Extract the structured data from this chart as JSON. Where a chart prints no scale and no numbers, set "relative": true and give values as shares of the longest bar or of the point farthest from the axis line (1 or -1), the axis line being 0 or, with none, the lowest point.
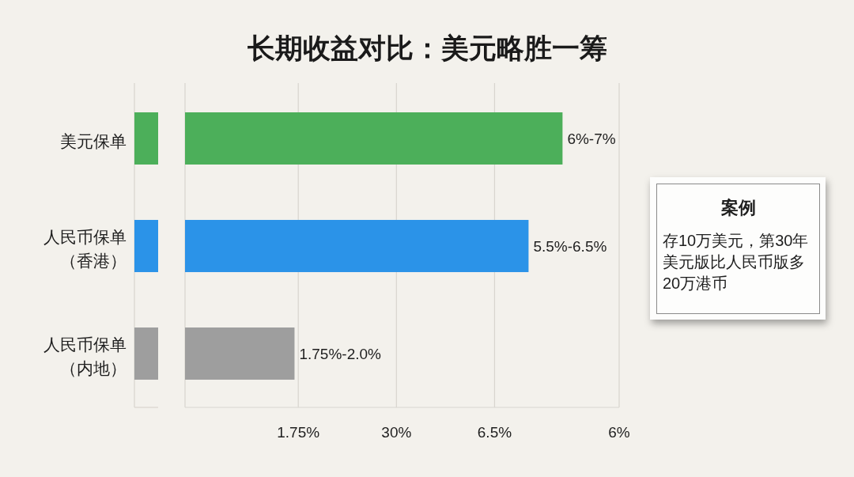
{
  "chart_data": {
    "type": "bar",
    "orientation": "horizontal",
    "relative": true,
    "title": "长期收益对比：美元略胜一筹",
    "categories": [
      "美元保单",
      "人民币保单（香港）",
      "人民币保单（内地）"
    ],
    "values": [
      1,
      0.91,
      0.29
    ],
    "colors": [
      "#4caf5a",
      "#2b93e8",
      "#9e9e9e"
    ],
    "ref_lines": [
      {
        "axis": "x",
        "value": 0.3,
        "color": "#d8d5cf"
      },
      {
        "axis": "x",
        "value": 0.56,
        "color": "#d8d5cf"
      },
      {
        "axis": "x",
        "value": 0.82,
        "color": "#d8d5cf"
      },
      {
        "axis": "x",
        "value": 1.15,
        "color": "#d8d5cf"
      }
    ],
    "annotations": [
      "案例",
      "存10万美元，第30年美元版比人民币版多20万港币",
      "1.75%",
      "30%",
      "6.5%",
      "6%",
      {
        "text": "6%-7%",
        "x": 1,
        "y": "美元保单"
      },
      {
        "text": "5.5%-6.5%",
        "x": 0.91,
        "y": "人民币保单（香港）"
      },
      {
        "text": "1.75%-2.0%",
        "x": 0.29,
        "y": "人民币保单（内地）"
      }
    ]
  }
}
